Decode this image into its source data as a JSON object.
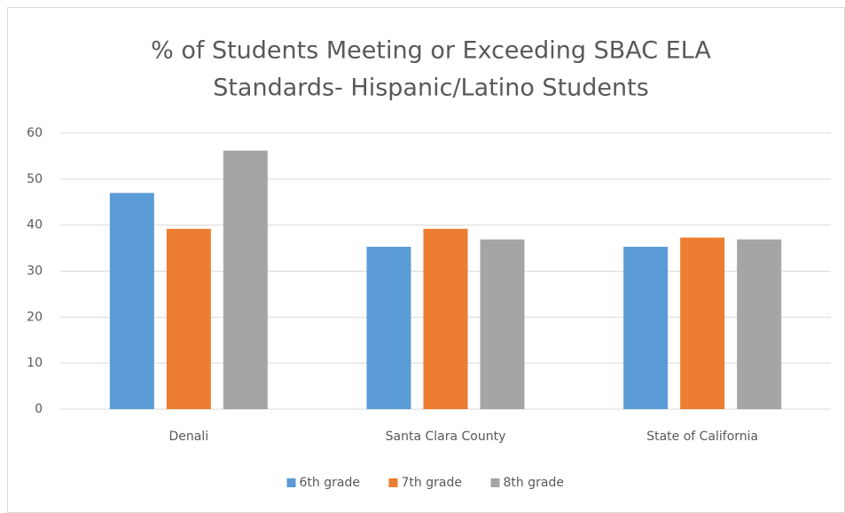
{
  "chart_data": {
    "type": "bar",
    "title": [
      "% of Students Meeting or Exceeding SBAC ELA",
      "Standards- Hispanic/Latino Students"
    ],
    "categories": [
      "Denali",
      "Santa Clara County",
      "State of California"
    ],
    "series": [
      {
        "name": "6th grade",
        "color": "#5b9bd5",
        "values": [
          47,
          35.3,
          35.3
        ]
      },
      {
        "name": "7th grade",
        "color": "#ed7d31",
        "values": [
          39.2,
          39.2,
          37.3
        ]
      },
      {
        "name": "8th grade",
        "color": "#a5a5a5",
        "values": [
          56.2,
          36.9,
          36.9
        ]
      }
    ],
    "ylim": [
      0,
      60
    ],
    "yticks": [
      0,
      10,
      20,
      30,
      40,
      50,
      60
    ],
    "grid": true,
    "legend": "bottom"
  }
}
